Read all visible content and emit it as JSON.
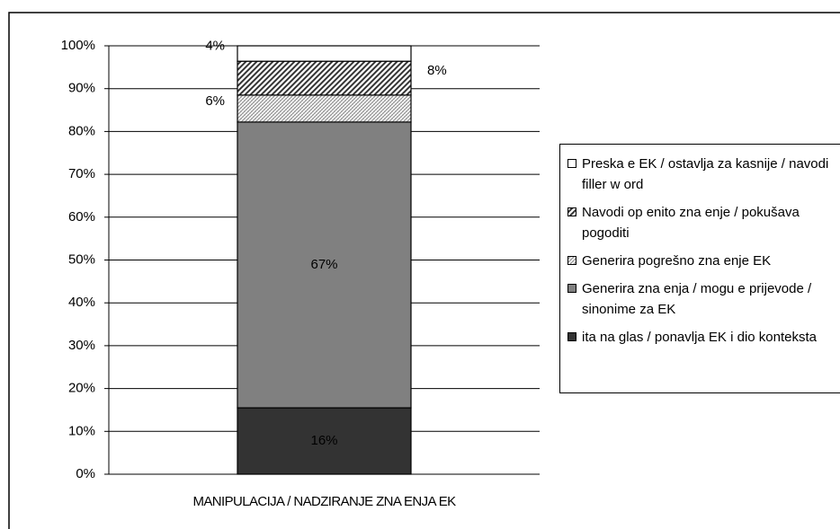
{
  "chart_data": {
    "type": "stacked_bar",
    "categories": [
      "MANIPULACIJA / NADZIRANJE ZNA ENJA EK"
    ],
    "series": [
      {
        "name": "ita na glas / ponavlja EK i dio konteksta",
        "color": "#333333",
        "values": [
          15.5
        ],
        "value_labels": [
          "16%"
        ]
      },
      {
        "name": "Generira zna enja / mogu e prijevode / sinonime za EK",
        "color": "#808080",
        "values": [
          66.7
        ],
        "value_labels": [
          "67%"
        ]
      },
      {
        "name": "Generira pogrešno zna enje EK",
        "color": "#ffffff",
        "hatch": "light",
        "values": [
          6.3
        ],
        "value_labels": [
          "6%"
        ]
      },
      {
        "name": "Navodi op enito zna enje / pokušava pogoditi",
        "color": "#ffffff",
        "hatch": "dense",
        "values": [
          7.9
        ],
        "value_labels": [
          "8%"
        ]
      },
      {
        "name": "Preska e EK / ostavlja za kasnije / navodi filler w ord",
        "color": "#ffffff",
        "values": [
          3.6
        ],
        "value_labels": [
          "4%"
        ]
      }
    ],
    "ylim": [
      0,
      100
    ],
    "yticks": [
      {
        "value": 0,
        "label": "0%"
      },
      {
        "value": 10,
        "label": "10%"
      },
      {
        "value": 20,
        "label": "20%"
      },
      {
        "value": 30,
        "label": "30%"
      },
      {
        "value": 40,
        "label": "40%"
      },
      {
        "value": 50,
        "label": "50%"
      },
      {
        "value": 60,
        "label": "60%"
      },
      {
        "value": 70,
        "label": "70%"
      },
      {
        "value": 80,
        "label": "80%"
      },
      {
        "value": 90,
        "label": "90%"
      },
      {
        "value": 100,
        "label": "100%"
      }
    ],
    "grid": true,
    "legend": "right"
  }
}
